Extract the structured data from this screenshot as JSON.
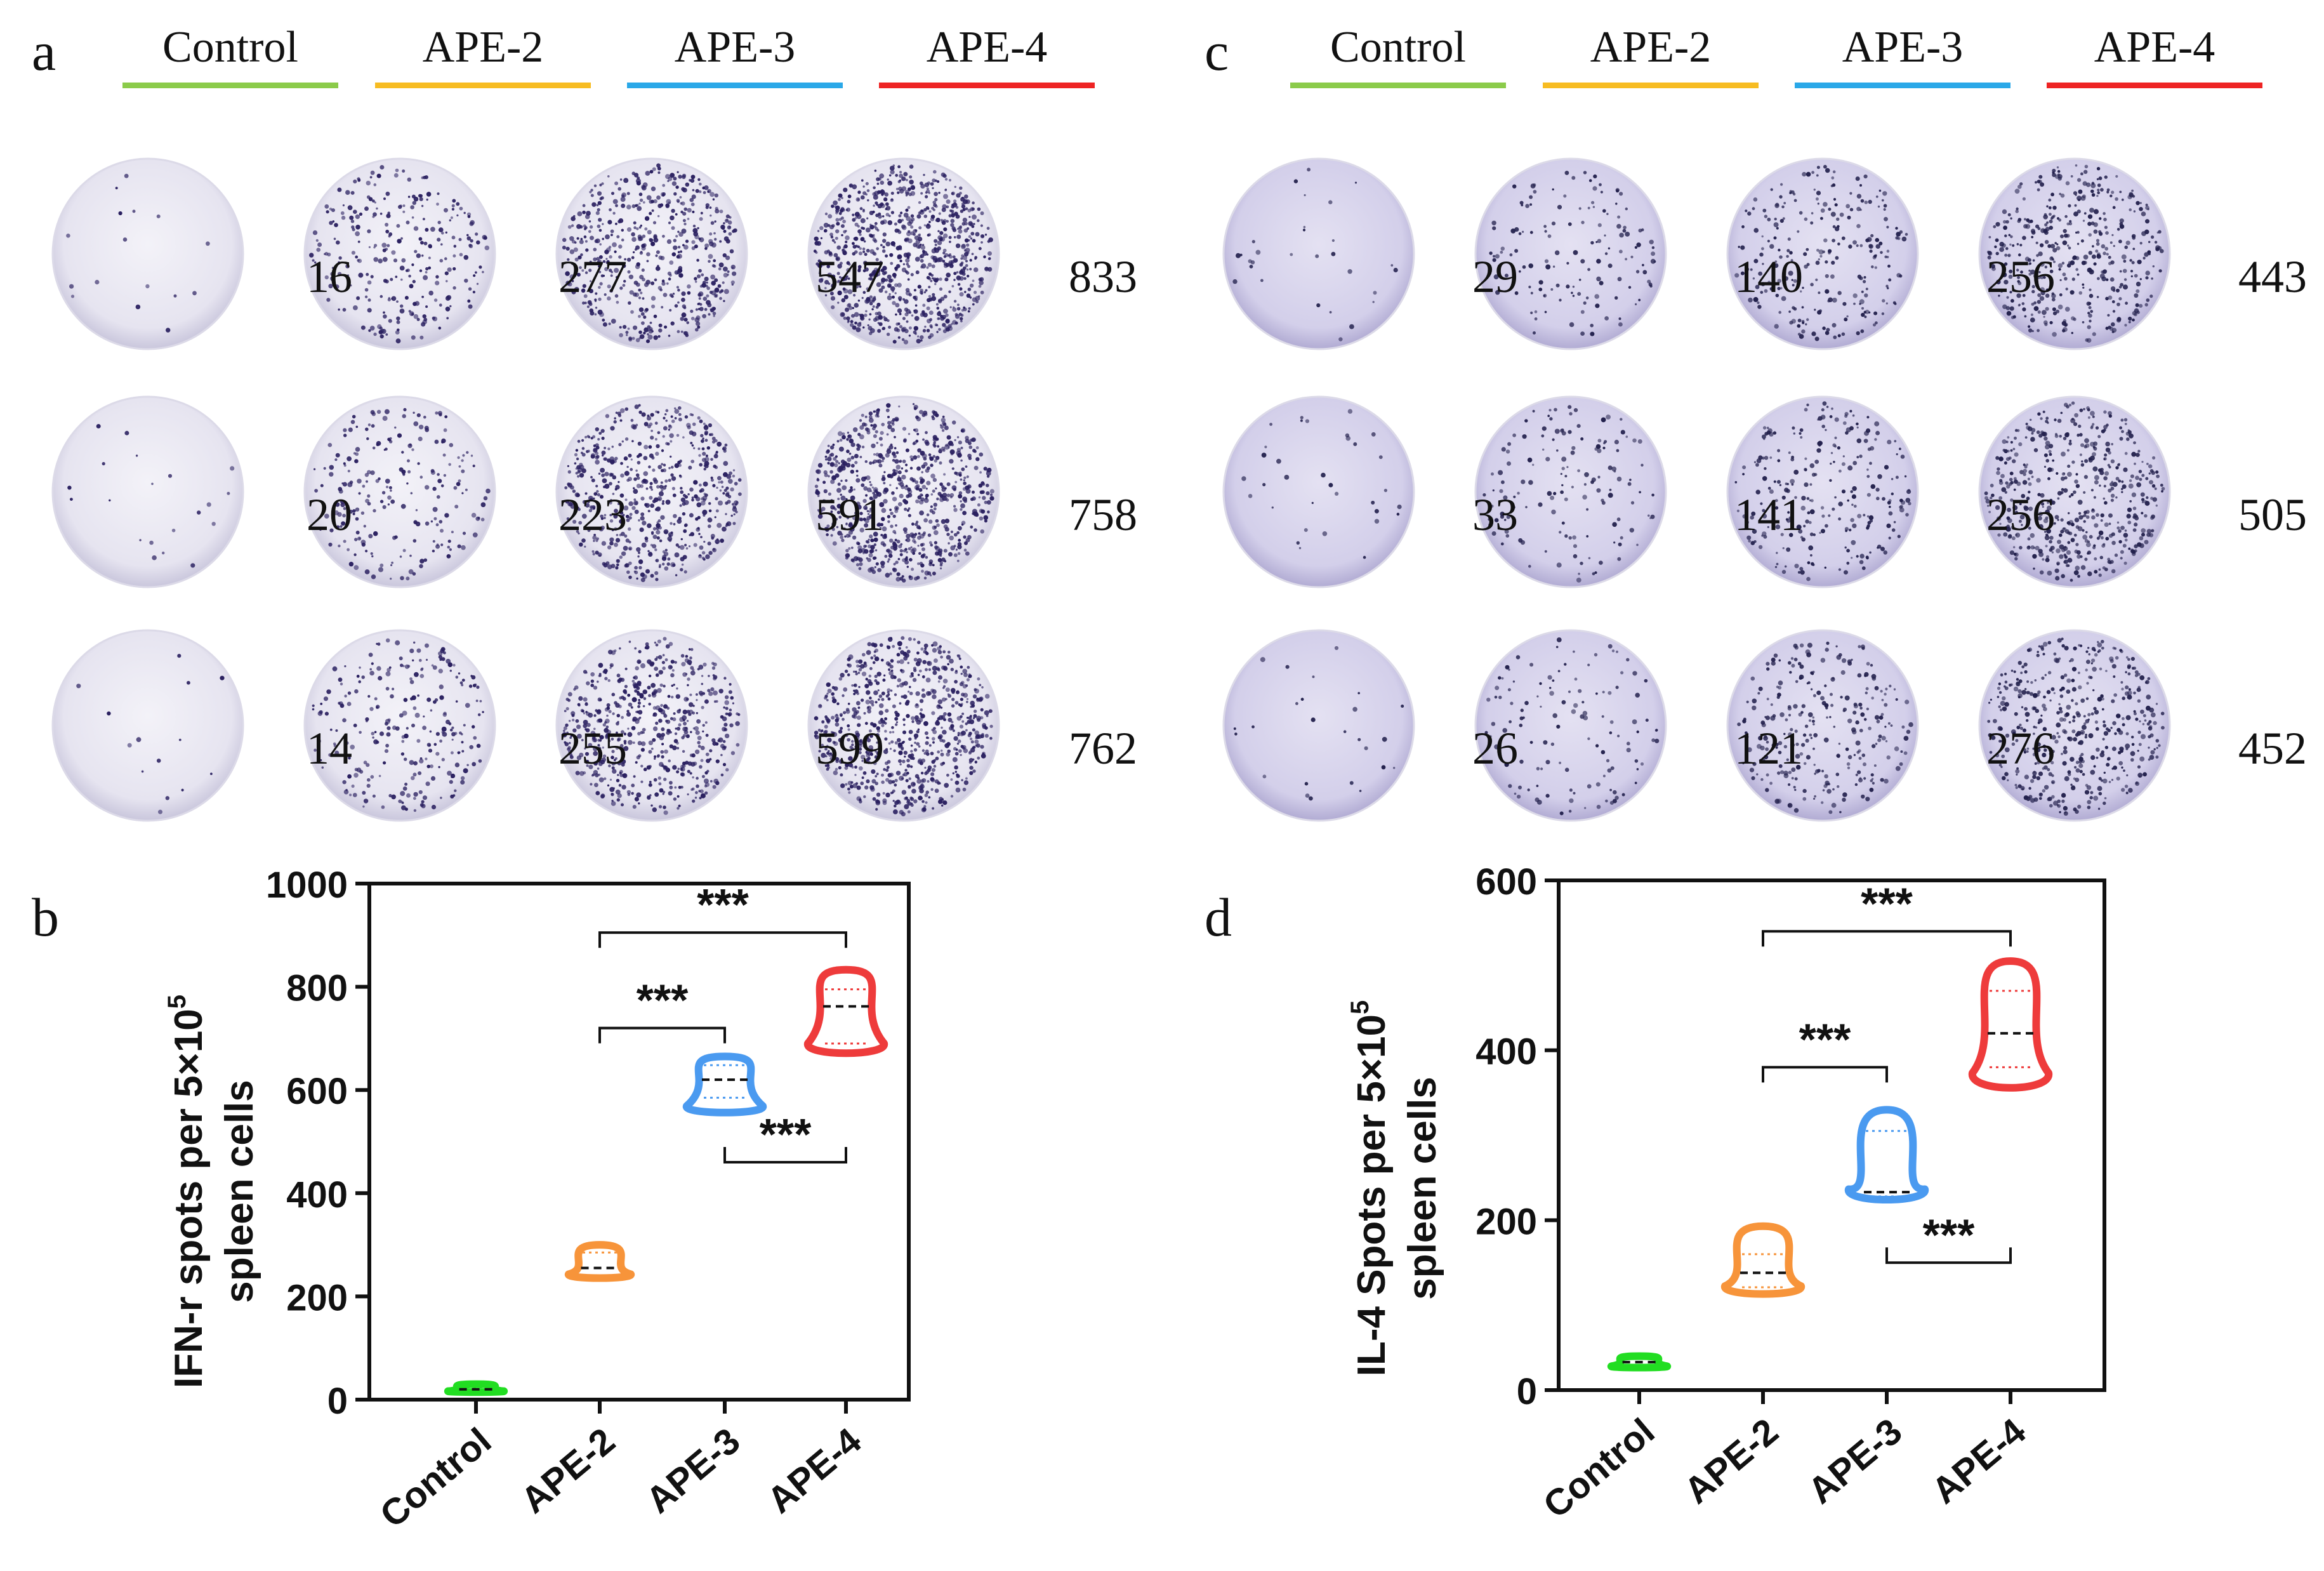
{
  "panels": [
    {
      "letter": "a"
    },
    {
      "letter": "b"
    },
    {
      "letter": "c"
    },
    {
      "letter": "d"
    }
  ],
  "groups": [
    {
      "name": "Control",
      "color": "#8BCB4A"
    },
    {
      "name": "APE-2",
      "color": "#F7BC22"
    },
    {
      "name": "APE-3",
      "color": "#2AA8E8"
    },
    {
      "name": "APE-4",
      "color": "#EE2424"
    }
  ],
  "well_counts": {
    "a": [
      [
        "16",
        "277",
        "547",
        "833"
      ],
      [
        "20",
        "223",
        "591",
        "758"
      ],
      [
        "14",
        "255",
        "599",
        "762"
      ]
    ],
    "c": [
      [
        "29",
        "140",
        "256",
        "443"
      ],
      [
        "33",
        "141",
        "256",
        "505"
      ],
      [
        "26",
        "121",
        "276",
        "452"
      ]
    ]
  },
  "chart_data": [
    {
      "panel": "b",
      "type": "violin",
      "categories": [
        "Control",
        "APE-2",
        "APE-3",
        "APE-4"
      ],
      "ylabel_line1": "IFN-r spots per 5×10",
      "ylabel_sup": "5",
      "ylabel_line2": "spleen cells",
      "ylim": [
        0,
        1000
      ],
      "yticks": [
        "0",
        "200",
        "400",
        "600",
        "800",
        "1000"
      ],
      "series": [
        {
          "name": "Control",
          "color": "#22DD22",
          "min": 14,
          "max": 30,
          "median": 20,
          "q1": 16,
          "q3": 24
        },
        {
          "name": "APE-2",
          "color": "#F7943A",
          "min": 233,
          "max": 300,
          "median": 255,
          "q1": 240,
          "q3": 285
        },
        {
          "name": "APE-3",
          "color": "#4A9AF0",
          "min": 552,
          "max": 665,
          "median": 620,
          "q1": 585,
          "q3": 648
        },
        {
          "name": "APE-4",
          "color": "#EE3B3B",
          "min": 665,
          "max": 833,
          "median": 762,
          "q1": 690,
          "q3": 795
        }
      ],
      "significance": [
        {
          "from": "APE-2",
          "to": "APE-4",
          "y": 905,
          "label": "***",
          "side": "up"
        },
        {
          "from": "APE-2",
          "to": "APE-3",
          "y": 720,
          "label": "***",
          "side": "up"
        },
        {
          "from": "APE-3",
          "to": "APE-4",
          "y": 460,
          "label": "***",
          "side": "down"
        }
      ]
    },
    {
      "panel": "d",
      "type": "violin",
      "categories": [
        "Control",
        "APE-2",
        "APE-3",
        "APE-4"
      ],
      "ylabel_line1": "IL-4 Spots per 5×10",
      "ylabel_sup": "5",
      "ylabel_line2": "spleen cells",
      "ylim": [
        0,
        600
      ],
      "yticks": [
        "0",
        "200",
        "400",
        "600"
      ],
      "series": [
        {
          "name": "Control",
          "color": "#22DD22",
          "min": 26,
          "max": 40,
          "median": 33,
          "q1": 29,
          "q3": 37
        },
        {
          "name": "APE-2",
          "color": "#F7943A",
          "min": 110,
          "max": 193,
          "median": 138,
          "q1": 121,
          "q3": 160
        },
        {
          "name": "APE-3",
          "color": "#4A9AF0",
          "min": 220,
          "max": 330,
          "median": 233,
          "q1": 228,
          "q3": 305
        },
        {
          "name": "APE-4",
          "color": "#EE3B3B",
          "min": 350,
          "max": 505,
          "median": 420,
          "q1": 380,
          "q3": 470
        }
      ],
      "significance": [
        {
          "from": "APE-2",
          "to": "APE-4",
          "y": 540,
          "label": "***",
          "side": "up"
        },
        {
          "from": "APE-2",
          "to": "APE-3",
          "y": 380,
          "label": "***",
          "side": "up"
        },
        {
          "from": "APE-3",
          "to": "APE-4",
          "y": 150,
          "label": "***",
          "side": "down"
        }
      ]
    }
  ]
}
